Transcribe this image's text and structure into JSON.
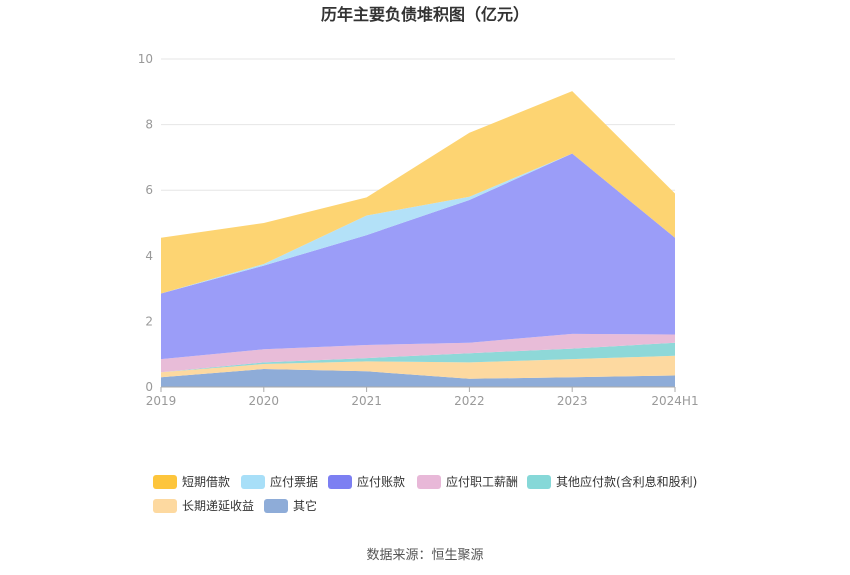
{
  "chart_data": {
    "type": "area",
    "stacked": true,
    "title": "历年主要负债堆积图（亿元）",
    "categories": [
      "2019",
      "2020",
      "2021",
      "2022",
      "2023",
      "2024H1"
    ],
    "ylim": [
      0,
      10
    ],
    "yticks": [
      "0",
      "2",
      "4",
      "6",
      "8",
      "10"
    ],
    "xlabel": "",
    "ylabel": "",
    "grid": true,
    "legend_position": "bottom",
    "series": [
      {
        "name": "其它",
        "color": "#8eacd8",
        "values": [
          0.3,
          0.55,
          0.48,
          0.25,
          0.3,
          0.35
        ]
      },
      {
        "name": "长期递延收益",
        "color": "#fdd9a0",
        "values": [
          0.15,
          0.15,
          0.3,
          0.5,
          0.55,
          0.6
        ]
      },
      {
        "name": "其他应付款(含利息和股利)",
        "color": "#8ed8d8",
        "values": [
          0.0,
          0.05,
          0.1,
          0.28,
          0.32,
          0.4
        ]
      },
      {
        "name": "应付职工薪酬",
        "color": "#e8bcd8",
        "values": [
          0.4,
          0.4,
          0.4,
          0.32,
          0.45,
          0.25
        ]
      },
      {
        "name": "应付账款",
        "color": "#9b9df8",
        "values": [
          2.0,
          2.55,
          3.35,
          4.35,
          5.5,
          2.95
        ]
      },
      {
        "name": "应付票据",
        "color": "#b3e1f8",
        "values": [
          0.0,
          0.05,
          0.6,
          0.1,
          0.0,
          0.0
        ]
      },
      {
        "name": "短期借款",
        "color": "#fdd472",
        "values": [
          1.7,
          1.25,
          0.55,
          1.95,
          1.9,
          1.35
        ]
      }
    ],
    "legend_order": [
      "短期借款",
      "应付票据",
      "应付账款",
      "应付职工薪酬",
      "其他应付款(含利息和股利)",
      "长期递延收益",
      "其它"
    ],
    "legend_colors": [
      "#fdc53c",
      "#a8dff8",
      "#7c7ff2",
      "#e8b8d8",
      "#86d8d8",
      "#fdd9a0",
      "#8eacd8"
    ]
  },
  "footer": {
    "source": "数据来源：恒生聚源"
  }
}
